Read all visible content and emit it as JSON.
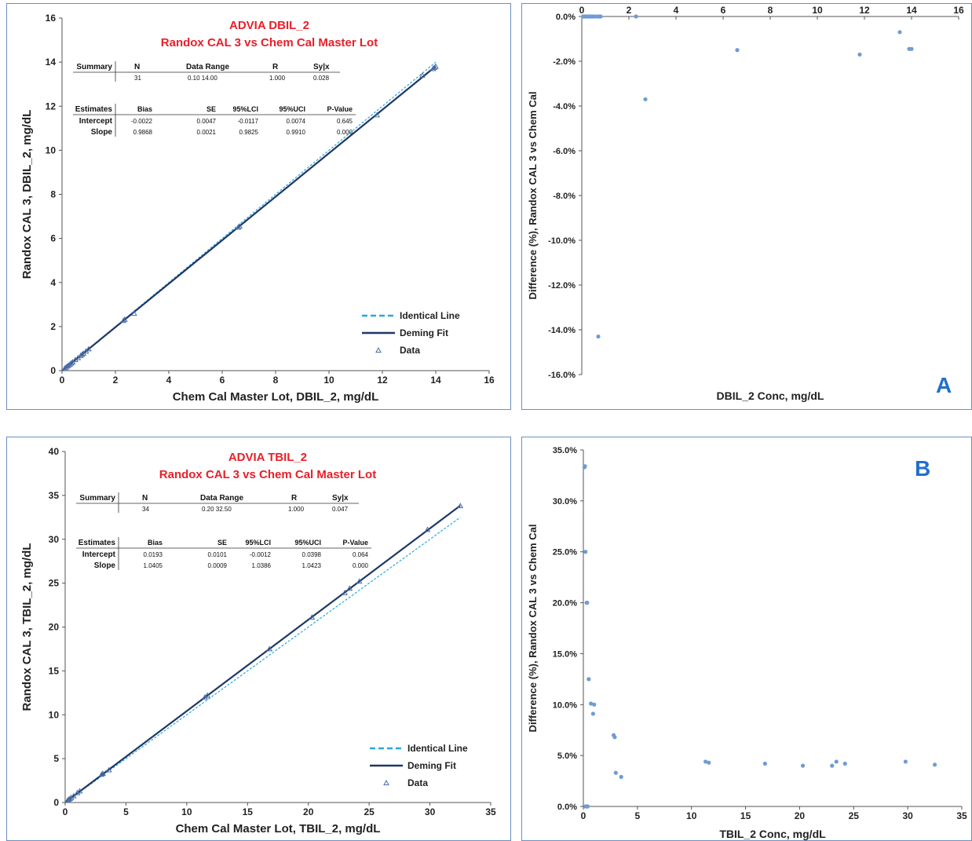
{
  "panels": {
    "A": {
      "letter": "A"
    },
    "B": {
      "letter": "B"
    }
  },
  "chart_data": [
    {
      "id": "dbil-scatter",
      "type": "scatter",
      "title": "ADVIA DBIL_2",
      "subtitle": "Randox CAL 3 vs Chem Cal Master Lot",
      "xlabel": "Chem Cal Master Lot, DBIL_2, mg/dL",
      "ylabel": "Randox CAL 3, DBIL_2, mg/dL",
      "xlim": [
        0,
        16
      ],
      "ylim": [
        0,
        16
      ],
      "xticks": [
        0,
        2,
        4,
        6,
        8,
        10,
        12,
        14,
        16
      ],
      "yticks": [
        0,
        2,
        4,
        6,
        8,
        10,
        12,
        14,
        16
      ],
      "grid": false,
      "legend_position": "bottom-right",
      "legend": [
        "Identical Line",
        "Deming Fit",
        "Data"
      ],
      "series": [
        {
          "name": "Identical Line",
          "kind": "line",
          "style": "dashed",
          "color": "#29a8e0",
          "x": [
            0,
            14
          ],
          "y": [
            0,
            14
          ]
        },
        {
          "name": "Deming Fit",
          "kind": "line",
          "style": "solid",
          "color": "#1f3864",
          "x": [
            0,
            14
          ],
          "y": [
            -0.0022,
            13.813
          ]
        },
        {
          "name": "Data",
          "kind": "points",
          "marker": "triangle",
          "color": "#1f3864",
          "x": [
            0.1,
            0.15,
            0.2,
            0.25,
            0.3,
            0.35,
            0.4,
            0.5,
            0.6,
            0.7,
            0.75,
            0.8,
            0.9,
            1.0,
            2.3,
            2.35,
            2.7,
            6.6,
            6.65,
            11.8,
            13.5,
            13.9,
            13.95,
            14.0
          ],
          "y": [
            0.1,
            0.15,
            0.2,
            0.24,
            0.29,
            0.34,
            0.39,
            0.49,
            0.58,
            0.68,
            0.73,
            0.78,
            0.88,
            0.98,
            2.27,
            2.32,
            2.6,
            6.5,
            6.55,
            11.6,
            13.4,
            13.7,
            13.75,
            13.8
          ]
        }
      ],
      "summary_table": {
        "headers": [
          "Summary",
          "N",
          "Data Range",
          "R",
          "Sy|x"
        ],
        "row": [
          "",
          "31",
          "0.10  14.00",
          "1.000",
          "0.028"
        ]
      },
      "estimates_table": {
        "headers": [
          "Estimates",
          "Bias",
          "SE",
          "95%LCI",
          "95%UCI",
          "P-Value"
        ],
        "rows": [
          [
            "Intercept",
            "-0.0022",
            "0.0047",
            "-0.0117",
            "0.0074",
            "0.645"
          ],
          [
            "Slope",
            "0.9868",
            "0.0021",
            "0.9825",
            "0.9910",
            "0.000"
          ]
        ]
      }
    },
    {
      "id": "dbil-diff",
      "type": "scatter",
      "xlabel": "DBIL_2 Conc, mg/dL",
      "ylabel": "Difference (%), Randox CAL 3 vs Chem Cal",
      "xlim": [
        0,
        16
      ],
      "ylim": [
        -16,
        0
      ],
      "xticks": [
        0,
        2,
        4,
        6,
        8,
        10,
        12,
        14,
        16
      ],
      "yticks": [
        0,
        -2,
        -4,
        -6,
        -8,
        -10,
        -12,
        -14,
        -16
      ],
      "ytick_labels": [
        "0.0%",
        "-2.0%",
        "-4.0%",
        "-6.0%",
        "-8.0%",
        "-10.0%",
        "-12.0%",
        "-14.0%",
        "-16.0%"
      ],
      "x_axis_at_top": true,
      "grid": false,
      "series": [
        {
          "kind": "points",
          "marker": "circle",
          "color": "#6f9bd6",
          "x": [
            0.05,
            0.1,
            0.15,
            0.2,
            0.25,
            0.3,
            0.35,
            0.4,
            0.45,
            0.5,
            0.6,
            0.7,
            0.75,
            0.8,
            2.3,
            0.7,
            2.7,
            6.6,
            11.8,
            13.5,
            13.9,
            14.0
          ],
          "y": [
            0,
            0,
            0,
            0,
            0,
            0,
            0,
            0,
            0,
            0,
            0,
            0,
            0,
            0,
            0,
            -14.3,
            -3.7,
            -1.5,
            -1.7,
            -0.7,
            -1.45,
            -1.45
          ]
        }
      ]
    },
    {
      "id": "tbil-scatter",
      "type": "scatter",
      "title": "ADVIA TBIL_2",
      "subtitle": "Randox CAL 3 vs Chem Cal Master Lot",
      "xlabel": "Chem Cal Master Lot, TBIL_2, mg/dL",
      "ylabel": "Randox CAL 3, TBIL_2, mg/dL",
      "xlim": [
        0,
        35
      ],
      "ylim": [
        0,
        40
      ],
      "xticks": [
        0,
        5,
        10,
        15,
        20,
        25,
        30,
        35
      ],
      "yticks": [
        0,
        5,
        10,
        15,
        20,
        25,
        30,
        35,
        40
      ],
      "grid": false,
      "legend_position": "bottom-right",
      "legend": [
        "Identical Line",
        "Deming Fit",
        "Data"
      ],
      "series": [
        {
          "name": "Identical Line",
          "kind": "line",
          "style": "dashed",
          "color": "#29a8e0",
          "x": [
            0,
            32.5
          ],
          "y": [
            0,
            32.5
          ]
        },
        {
          "name": "Deming Fit",
          "kind": "line",
          "style": "solid",
          "color": "#1f3864",
          "x": [
            0,
            32.5
          ],
          "y": [
            0.0193,
            33.8355
          ]
        },
        {
          "name": "Data",
          "kind": "points",
          "marker": "triangle",
          "color": "#1f3864",
          "x": [
            0.2,
            0.3,
            0.4,
            0.5,
            0.7,
            1.0,
            1.2,
            3.0,
            3.1,
            3.6,
            11.5,
            11.7,
            16.8,
            20.3,
            23.0,
            23.4,
            24.2,
            29.8,
            32.5
          ],
          "y": [
            0.25,
            0.35,
            0.45,
            0.55,
            0.75,
            1.1,
            1.3,
            3.2,
            3.3,
            3.7,
            12.0,
            12.2,
            17.5,
            21.1,
            23.9,
            24.4,
            25.2,
            31.1,
            33.8
          ]
        }
      ],
      "summary_table": {
        "headers": [
          "Summary",
          "N",
          "Data Range",
          "R",
          "Sy|x"
        ],
        "row": [
          "",
          "34",
          "0.20  32.50",
          "1.000",
          "0.047"
        ]
      },
      "estimates_table": {
        "headers": [
          "Estimates",
          "Bias",
          "SE",
          "95%LCI",
          "95%UCI",
          "P-Value"
        ],
        "rows": [
          [
            "Intercept",
            "0.0193",
            "0.0101",
            "-0.0012",
            "0.0398",
            "0.064"
          ],
          [
            "Slope",
            "1.0405",
            "0.0009",
            "1.0386",
            "1.0423",
            "0.000"
          ]
        ]
      }
    },
    {
      "id": "tbil-diff",
      "type": "scatter",
      "xlabel": "TBIL_2 Conc, mg/dL",
      "ylabel": "Difference (%), Randox CAL 3 vs Chem Cal",
      "xlim": [
        0,
        35
      ],
      "ylim": [
        0,
        35
      ],
      "xticks": [
        0,
        5,
        10,
        15,
        20,
        25,
        30,
        35
      ],
      "yticks": [
        0,
        5,
        10,
        15,
        20,
        25,
        30,
        35
      ],
      "ytick_labels": [
        "0.0%",
        "5.0%",
        "10.0%",
        "15.0%",
        "20.0%",
        "25.0%",
        "30.0%",
        "35.0%"
      ],
      "x_axis_at_top": false,
      "grid": false,
      "series": [
        {
          "kind": "points",
          "marker": "circle",
          "color": "#6f9bd6",
          "x": [
            0.1,
            0.15,
            0.2,
            0.3,
            0.35,
            0.5,
            0.7,
            0.9,
            1.0,
            2.8,
            2.9,
            3.0,
            3.5,
            11.3,
            11.6,
            16.8,
            20.3,
            23.0,
            23.4,
            24.2,
            29.8,
            32.5,
            0.2,
            0.25,
            0.35,
            0.4
          ],
          "y": [
            33.3,
            33.4,
            25.0,
            20.0,
            20.0,
            12.5,
            10.1,
            9.1,
            10.0,
            7.0,
            6.8,
            3.3,
            2.9,
            4.4,
            4.3,
            4.2,
            4.0,
            4.0,
            4.4,
            4.2,
            4.4,
            4.1,
            0.0,
            0.0,
            0.0,
            0.0
          ]
        }
      ]
    }
  ]
}
